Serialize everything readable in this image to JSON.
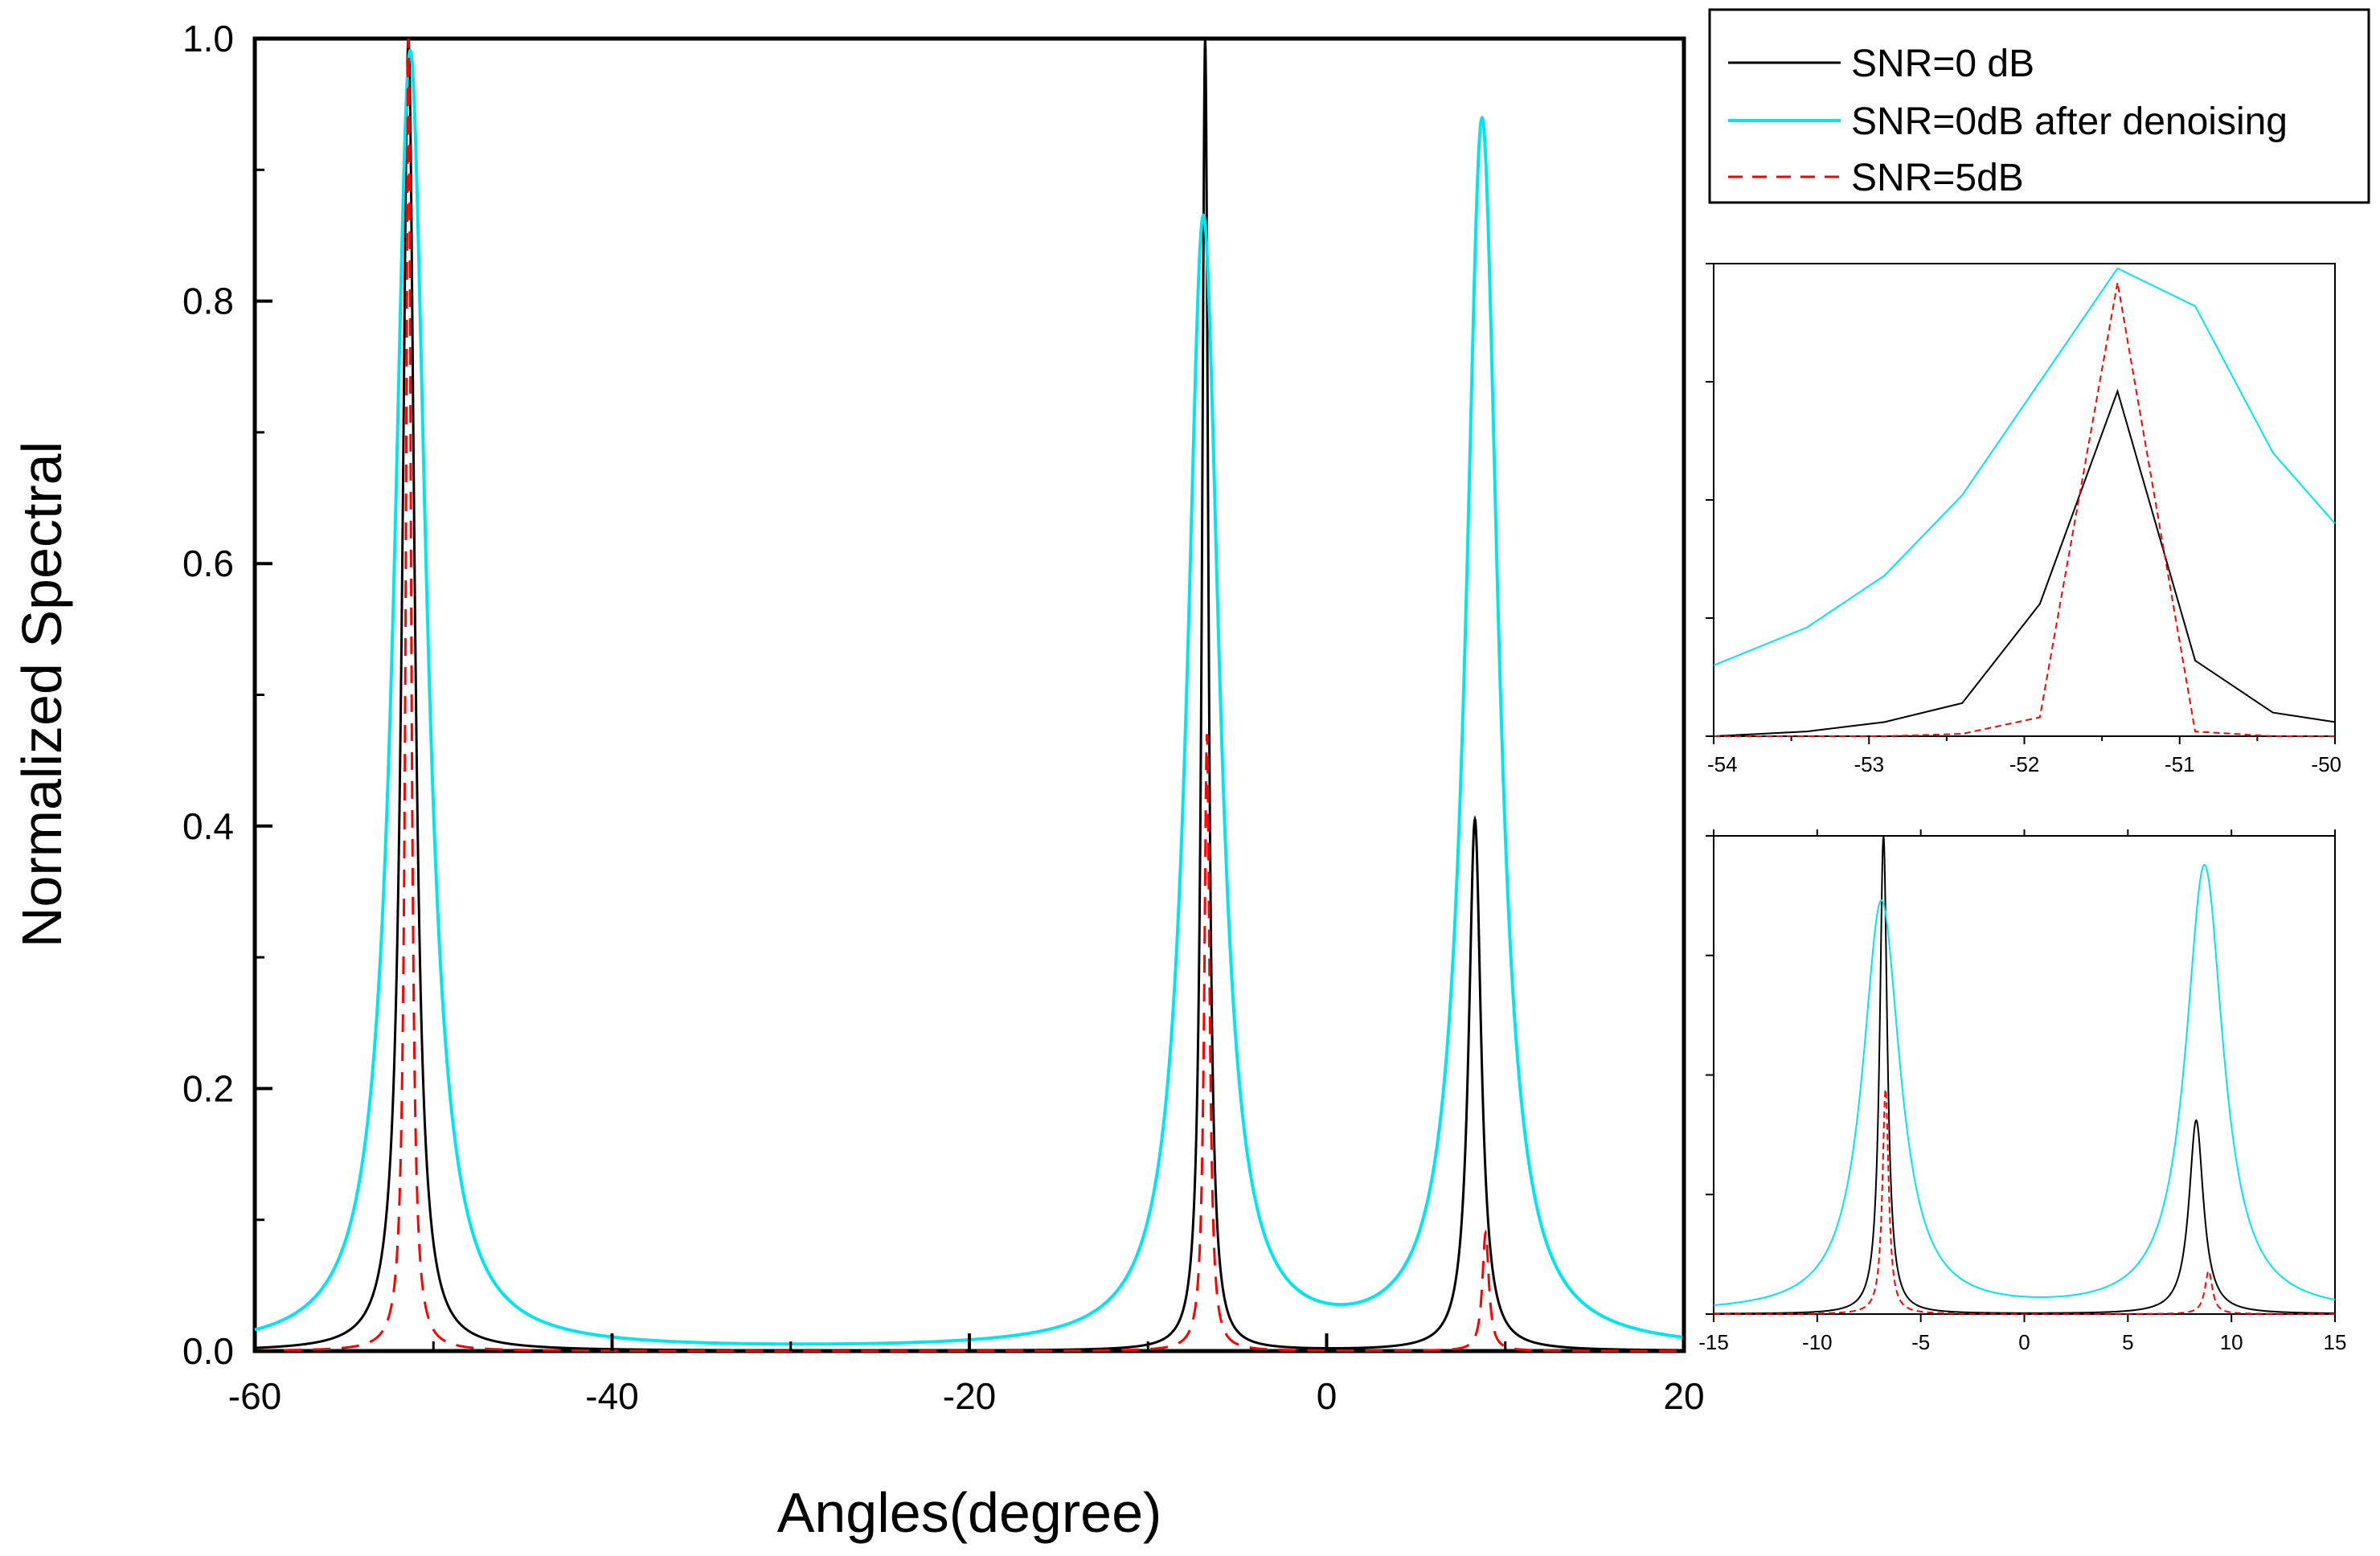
{
  "chart_data": [
    {
      "id": "main",
      "type": "line",
      "title": "",
      "xlabel": "Angles(degree)",
      "ylabel": "Normalized Spectral",
      "xlim": [
        -60,
        20
      ],
      "ylim": [
        0,
        1.0
      ],
      "xticks": [
        -60,
        -40,
        -20,
        0,
        20
      ],
      "xtick_labels": [
        "-60",
        "-40",
        "-20",
        "0",
        "20"
      ],
      "yticks": [
        0.0,
        0.2,
        0.4,
        0.6,
        0.8,
        1.0
      ],
      "ytick_labels": [
        "0.0",
        "0.2",
        "0.4",
        "0.6",
        "0.8",
        "1.0"
      ],
      "legend": {
        "placement": "top-right outside",
        "entries": [
          {
            "label": "SNR=0 dB",
            "color": "#000000",
            "style": "solid"
          },
          {
            "label": "SNR=0dB after denoising",
            "color": "#00e5ee",
            "style": "solid"
          },
          {
            "label": "SNR=5dB",
            "color": "#ff0000",
            "style": "dashed"
          }
        ]
      },
      "series": [
        {
          "name": "SNR=0 dB",
          "color": "#000000",
          "style": "solid",
          "peaks": [
            {
              "center": -51.4,
              "height": 1.0,
              "width": 0.42
            },
            {
              "center": -6.8,
              "height": 1.0,
              "width": 0.22
            },
            {
              "center": 8.3,
              "height": 0.405,
              "width": 0.42
            }
          ]
        },
        {
          "name": "SNR=0dB after denoising",
          "color": "#00e5ee",
          "style": "solid",
          "peaks": [
            {
              "center": -51.3,
              "height": 0.99,
              "width": 1.1
            },
            {
              "center": -6.9,
              "height": 0.86,
              "width": 1.1
            },
            {
              "center": 8.7,
              "height": 0.935,
              "width": 1.1
            }
          ]
        },
        {
          "name": "SNR=5dB",
          "color": "#ff0000",
          "style": "dashed",
          "peaks": [
            {
              "center": -51.4,
              "height": 1.0,
              "width": 0.18
            },
            {
              "center": -6.7,
              "height": 0.47,
              "width": 0.18
            },
            {
              "center": 8.9,
              "height": 0.09,
              "width": 0.22
            }
          ]
        }
      ]
    },
    {
      "id": "inset-top",
      "type": "line",
      "title": "",
      "xlim": [
        -54,
        -50
      ],
      "xticks": [
        -54,
        -53,
        -52,
        -51,
        -50
      ],
      "xtick_labels": [
        "-54",
        "-53",
        "-52",
        "-51",
        "-50"
      ],
      "ytick_labels": [],
      "series": [
        {
          "name": "SNR=0 dB",
          "color": "#000000",
          "style": "solid",
          "x": [
            -54.0,
            -53.4,
            -52.9,
            -52.4,
            -51.9,
            -51.4,
            -50.9,
            -50.4,
            -50.0
          ],
          "y": [
            0.0,
            0.01,
            0.03,
            0.07,
            0.28,
            0.73,
            0.16,
            0.05,
            0.03
          ]
        },
        {
          "name": "SNR=0dB after denoising",
          "color": "#00e5ee",
          "style": "solid",
          "x": [
            -54.0,
            -53.4,
            -52.9,
            -52.4,
            -51.9,
            -51.4,
            -50.9,
            -50.4,
            -50.0
          ],
          "y": [
            0.15,
            0.23,
            0.34,
            0.51,
            0.75,
            0.99,
            0.91,
            0.6,
            0.45
          ]
        },
        {
          "name": "SNR=5dB",
          "color": "#ff0000",
          "style": "dashed",
          "x": [
            -54.0,
            -52.9,
            -52.4,
            -51.9,
            -51.4,
            -50.9,
            -50.4,
            -50.0
          ],
          "y": [
            0.0,
            0.0,
            0.005,
            0.04,
            0.96,
            0.01,
            0.0,
            0.0
          ]
        }
      ]
    },
    {
      "id": "inset-bottom",
      "type": "line",
      "title": "",
      "xlim": [
        -15,
        15
      ],
      "xticks": [
        -15,
        -10,
        -5,
        0,
        5,
        10,
        15
      ],
      "xtick_labels": [
        "-15",
        "-10",
        "-5",
        "0",
        "5",
        "10",
        "15"
      ],
      "ytick_labels": []
    }
  ]
}
